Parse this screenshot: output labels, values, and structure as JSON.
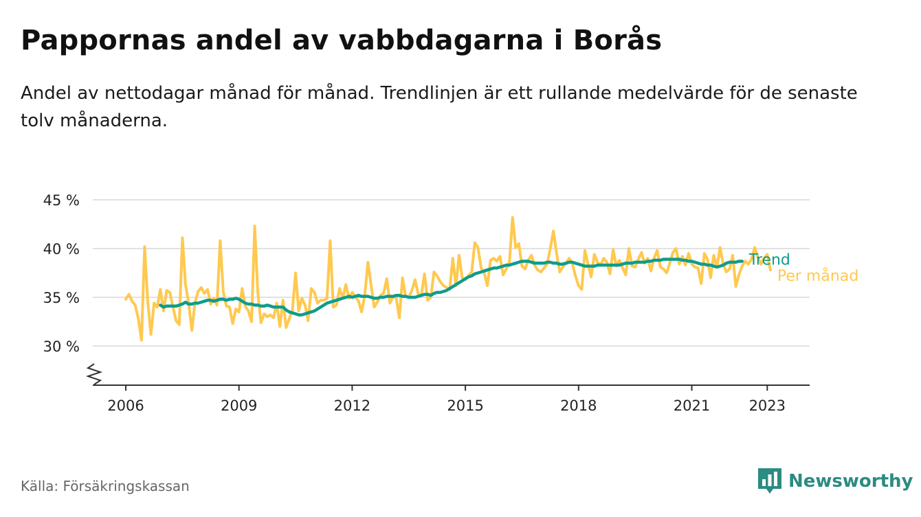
{
  "header": {
    "title": "Pappornas andel av vabbdagarna i Borås",
    "subtitle": "Andel av nettodagar månad för månad. Trendlinjen är ett rullande medelvärde för de senaste tolv månaderna."
  },
  "footer": {
    "source": "Källa: Försäkringskassan",
    "brand": "Newsworthy"
  },
  "colors": {
    "monthly": "#ffc94f",
    "trend": "#0e9c8c",
    "grid": "#d9d9d9",
    "axis": "#333333",
    "brand": "#2c8b82"
  },
  "chart_data": {
    "type": "line",
    "xlim": [
      2006,
      2024.2
    ],
    "ylim": [
      26,
      45
    ],
    "y_ticks": [
      30,
      35,
      40,
      45
    ],
    "y_tick_labels": [
      "30 %",
      "35 %",
      "40 %",
      "45 %"
    ],
    "x_ticks": [
      2006,
      2009,
      2012,
      2015,
      2018,
      2021,
      2023
    ],
    "x_tick_labels": [
      "2006",
      "2009",
      "2012",
      "2015",
      "2018",
      "2021",
      "2023"
    ],
    "axis_break": true,
    "grid": "horizontal",
    "series": [
      {
        "name": "Per månad",
        "start": "2006-01",
        "frequency": "monthly",
        "values": [
          34.8,
          35.3,
          34.6,
          34.2,
          32.8,
          30.6,
          40.2,
          34.5,
          31.2,
          34.4,
          34.0,
          35.8,
          33.6,
          35.7,
          35.5,
          34.0,
          32.6,
          32.2,
          41.1,
          36.3,
          34.4,
          31.6,
          34.4,
          35.6,
          36.0,
          35.4,
          35.8,
          34.3,
          34.9,
          34.2,
          40.8,
          35.6,
          34.1,
          34.0,
          32.3,
          33.8,
          33.5,
          35.9,
          34.1,
          33.6,
          32.5,
          42.3,
          35.5,
          32.4,
          33.3,
          33.0,
          33.2,
          32.9,
          34.4,
          32.0,
          34.7,
          31.9,
          32.8,
          33.7,
          37.5,
          33.6,
          34.9,
          34.2,
          32.6,
          35.9,
          35.5,
          34.4,
          34.7,
          34.7,
          34.9,
          40.8,
          34.0,
          34.2,
          35.9,
          34.9,
          36.3,
          34.9,
          35.5,
          35.1,
          34.6,
          33.5,
          35.2,
          38.6,
          36.3,
          34.0,
          34.5,
          35.2,
          35.4,
          36.9,
          34.4,
          35.1,
          34.9,
          32.9,
          37.0,
          35.1,
          35.0,
          35.7,
          36.8,
          35.3,
          35.2,
          37.4,
          34.7,
          35.0,
          37.6,
          37.2,
          36.6,
          36.2,
          36.0,
          35.8,
          39.0,
          36.2,
          39.3,
          37.0,
          36.8,
          37.2,
          37.6,
          40.6,
          40.1,
          38.0,
          37.5,
          36.2,
          38.8,
          39.0,
          38.7,
          39.2,
          37.3,
          37.9,
          38.6,
          43.2,
          40.1,
          40.5,
          38.2,
          37.9,
          38.8,
          39.3,
          38.3,
          37.8,
          37.6,
          38.0,
          38.4,
          40.0,
          41.8,
          39.5,
          37.6,
          38.1,
          38.5,
          39.0,
          38.5,
          37.2,
          36.2,
          35.8,
          39.8,
          38.4,
          37.1,
          39.4,
          38.6,
          38.3,
          39.0,
          38.6,
          37.4,
          39.9,
          38.2,
          38.8,
          38.0,
          37.3,
          40.0,
          38.2,
          38.1,
          38.9,
          39.6,
          38.5,
          39.0,
          37.7,
          39.0,
          39.8,
          38.1,
          37.9,
          37.5,
          38.5,
          39.6,
          40.0,
          38.4,
          39.2,
          38.3,
          39.5,
          38.4,
          38.1,
          38.0,
          36.4,
          39.5,
          38.9,
          37.0,
          39.3,
          38.1,
          40.1,
          38.4,
          37.6,
          37.9,
          39.3,
          36.1,
          37.3,
          38.2,
          38.7,
          38.4,
          38.9,
          40.1,
          39.1,
          38.4,
          39.0,
          39.4,
          37.8
        ]
      },
      {
        "name": "Trend",
        "start": "2006-12",
        "frequency": "monthly",
        "values": [
          34.2,
          34.0,
          34.1,
          34.1,
          34.1,
          34.1,
          34.2,
          34.3,
          34.5,
          34.3,
          34.3,
          34.4,
          34.4,
          34.5,
          34.6,
          34.7,
          34.7,
          34.6,
          34.7,
          34.8,
          34.8,
          34.7,
          34.8,
          34.8,
          34.9,
          34.8,
          34.6,
          34.4,
          34.3,
          34.3,
          34.2,
          34.2,
          34.1,
          34.1,
          34.2,
          34.1,
          34.0,
          34.0,
          34.0,
          34.0,
          33.7,
          33.5,
          33.4,
          33.3,
          33.2,
          33.2,
          33.3,
          33.4,
          33.5,
          33.6,
          33.8,
          34.0,
          34.2,
          34.4,
          34.5,
          34.6,
          34.7,
          34.8,
          34.9,
          35.0,
          35.1,
          35.0,
          35.1,
          35.2,
          35.1,
          35.1,
          35.1,
          35.0,
          34.9,
          34.9,
          35.0,
          35.0,
          35.1,
          35.1,
          35.1,
          35.2,
          35.2,
          35.1,
          35.1,
          35.0,
          35.0,
          35.0,
          35.1,
          35.2,
          35.3,
          35.3,
          35.2,
          35.4,
          35.5,
          35.5,
          35.6,
          35.7,
          35.9,
          36.1,
          36.3,
          36.5,
          36.7,
          36.9,
          37.1,
          37.2,
          37.4,
          37.5,
          37.6,
          37.7,
          37.8,
          37.9,
          38.0,
          38.0,
          38.1,
          38.2,
          38.3,
          38.3,
          38.4,
          38.5,
          38.6,
          38.7,
          38.7,
          38.7,
          38.6,
          38.5,
          38.5,
          38.5,
          38.5,
          38.6,
          38.6,
          38.5,
          38.5,
          38.4,
          38.4,
          38.5,
          38.6,
          38.6,
          38.5,
          38.4,
          38.3,
          38.2,
          38.2,
          38.2,
          38.2,
          38.3,
          38.3,
          38.3,
          38.3,
          38.3,
          38.3,
          38.3,
          38.3,
          38.4,
          38.5,
          38.5,
          38.5,
          38.6,
          38.6,
          38.6,
          38.6,
          38.7,
          38.7,
          38.8,
          38.8,
          38.8,
          38.9,
          38.9,
          38.9,
          38.9,
          38.9,
          38.9,
          38.8,
          38.8,
          38.7,
          38.7,
          38.6,
          38.5,
          38.4,
          38.4,
          38.3,
          38.3,
          38.2,
          38.1,
          38.2,
          38.3,
          38.5,
          38.6,
          38.6,
          38.6,
          38.7,
          38.7
        ]
      }
    ]
  }
}
